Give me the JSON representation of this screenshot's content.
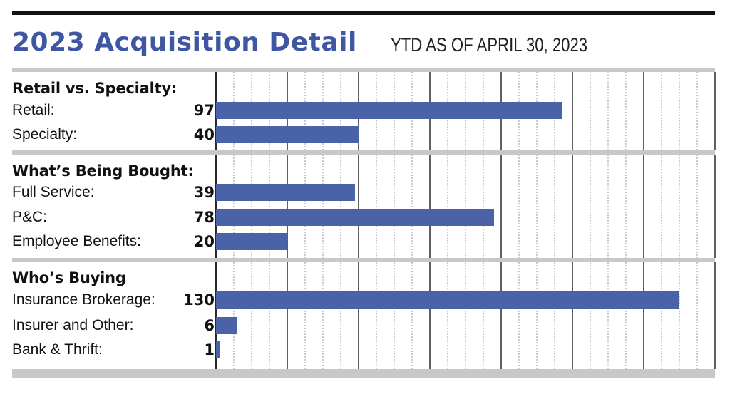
{
  "header": {
    "title": "2023 Acquisition Detail",
    "subtitle": "YTD AS OF APRIL 30, 2023"
  },
  "colors": {
    "bar": "#4a62a8",
    "title": "#3f57a3",
    "band": "#c8c8c8",
    "grid_major": "#2a2a2a",
    "grid_minor": "#9a9a9a"
  },
  "chart_data": {
    "type": "bar",
    "orientation": "horizontal",
    "title": "2023 Acquisition Detail",
    "subtitle": "YTD AS OF APRIL 30, 2023",
    "xlim": [
      0,
      140
    ],
    "grid": true,
    "groups": [
      {
        "title": "Retail vs. Specialty:",
        "rows": [
          {
            "label": "Retail:",
            "value": 97
          },
          {
            "label": "Specialty:",
            "value": 40
          }
        ]
      },
      {
        "title": "What’s Being Bought:",
        "rows": [
          {
            "label": "Full Service:",
            "value": 39
          },
          {
            "label": "P&C:",
            "value": 78
          },
          {
            "label": "Employee Benefits:",
            "value": 20
          }
        ]
      },
      {
        "title": "Who’s Buying",
        "rows": [
          {
            "label": "Insurance Brokerage:",
            "value": 130
          },
          {
            "label": "Insurer and Other:",
            "value": 6
          },
          {
            "label": "Bank & Thrift:",
            "value": 1
          }
        ]
      }
    ]
  }
}
